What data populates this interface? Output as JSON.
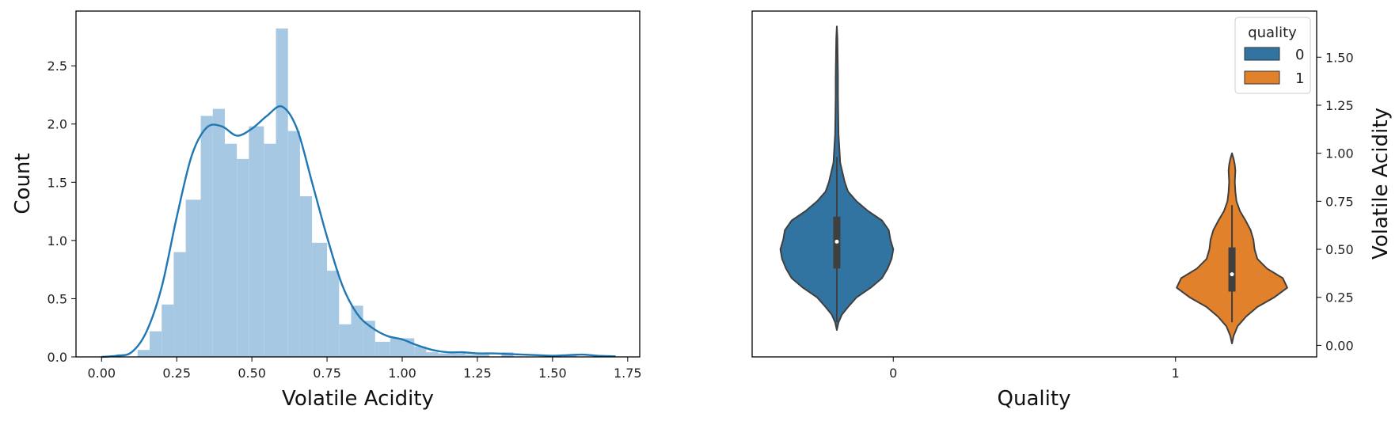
{
  "chart_data": [
    {
      "type": "bar",
      "subtype": "histogram-with-kde",
      "xlabel": "Volatile Acidity",
      "ylabel": "Count",
      "xlim": [
        -0.085,
        1.79
      ],
      "ylim": [
        0,
        2.97
      ],
      "xticks": [
        "0.00",
        "0.25",
        "0.50",
        "0.75",
        "1.00",
        "1.25",
        "1.50",
        "1.75"
      ],
      "yticks": [
        "0.0",
        "0.5",
        "1.0",
        "1.5",
        "2.0",
        "2.5"
      ],
      "grid": false,
      "bar_color": "#a6c8e2",
      "line_color": "#1f77b4",
      "bins": [
        {
          "x0": 0.12,
          "x1": 0.16,
          "h": 0.06
        },
        {
          "x0": 0.16,
          "x1": 0.2,
          "h": 0.22
        },
        {
          "x0": 0.2,
          "x1": 0.24,
          "h": 0.45
        },
        {
          "x0": 0.24,
          "x1": 0.28,
          "h": 0.9
        },
        {
          "x0": 0.28,
          "x1": 0.33,
          "h": 1.35
        },
        {
          "x0": 0.33,
          "x1": 0.37,
          "h": 2.07
        },
        {
          "x0": 0.37,
          "x1": 0.41,
          "h": 2.13
        },
        {
          "x0": 0.41,
          "x1": 0.45,
          "h": 1.83
        },
        {
          "x0": 0.45,
          "x1": 0.49,
          "h": 1.7
        },
        {
          "x0": 0.49,
          "x1": 0.54,
          "h": 1.98
        },
        {
          "x0": 0.54,
          "x1": 0.58,
          "h": 1.83
        },
        {
          "x0": 0.58,
          "x1": 0.62,
          "h": 2.82
        },
        {
          "x0": 0.62,
          "x1": 0.66,
          "h": 1.94
        },
        {
          "x0": 0.66,
          "x1": 0.7,
          "h": 1.38
        },
        {
          "x0": 0.7,
          "x1": 0.75,
          "h": 0.98
        },
        {
          "x0": 0.75,
          "x1": 0.79,
          "h": 0.74
        },
        {
          "x0": 0.79,
          "x1": 0.83,
          "h": 0.28
        },
        {
          "x0": 0.83,
          "x1": 0.87,
          "h": 0.44
        },
        {
          "x0": 0.87,
          "x1": 0.91,
          "h": 0.31
        },
        {
          "x0": 0.91,
          "x1": 0.96,
          "h": 0.13
        },
        {
          "x0": 0.96,
          "x1": 1.0,
          "h": 0.16
        },
        {
          "x0": 1.0,
          "x1": 1.04,
          "h": 0.16
        },
        {
          "x0": 1.04,
          "x1": 1.08,
          "h": 0.09
        },
        {
          "x0": 1.08,
          "x1": 1.12,
          "h": 0.04
        },
        {
          "x0": 1.12,
          "x1": 1.16,
          "h": 0.03
        },
        {
          "x0": 1.16,
          "x1": 1.21,
          "h": 0.03
        },
        {
          "x0": 1.21,
          "x1": 1.25,
          "h": 0.02
        },
        {
          "x0": 1.25,
          "x1": 1.29,
          "h": 0.02
        },
        {
          "x0": 1.33,
          "x1": 1.37,
          "h": 0.04
        },
        {
          "x0": 1.54,
          "x1": 1.58,
          "h": 0.02
        }
      ],
      "kde": {
        "x": [
          0.0,
          0.05,
          0.1,
          0.15,
          0.2,
          0.25,
          0.3,
          0.35,
          0.4,
          0.45,
          0.5,
          0.55,
          0.6,
          0.65,
          0.7,
          0.75,
          0.8,
          0.85,
          0.9,
          0.95,
          1.0,
          1.05,
          1.1,
          1.15,
          1.2,
          1.25,
          1.3,
          1.35,
          1.4,
          1.45,
          1.5,
          1.55,
          1.6,
          1.65,
          1.71
        ],
        "y": [
          0.0,
          0.01,
          0.04,
          0.22,
          0.6,
          1.2,
          1.73,
          1.97,
          1.98,
          1.9,
          1.96,
          2.07,
          2.15,
          1.96,
          1.5,
          1.03,
          0.62,
          0.37,
          0.25,
          0.18,
          0.15,
          0.1,
          0.06,
          0.04,
          0.04,
          0.03,
          0.03,
          0.025,
          0.02,
          0.015,
          0.01,
          0.015,
          0.02,
          0.01,
          0.005
        ]
      }
    },
    {
      "type": "violin",
      "xlabel": "Quality",
      "ylabel": "Volatile Acidity",
      "categories": [
        "0",
        "1"
      ],
      "ylim": [
        -0.06,
        1.74
      ],
      "yticks": [
        "0.00",
        "0.25",
        "0.50",
        "0.75",
        "1.00",
        "1.25",
        "1.50"
      ],
      "grid": false,
      "legend": {
        "title": "quality",
        "position": "top-right",
        "entries": [
          "0",
          "1"
        ]
      },
      "series": [
        {
          "name": "0",
          "color": "#3274a1",
          "category_offset": -0.2,
          "profile_y": [
            0.08,
            0.12,
            0.16,
            0.2,
            0.25,
            0.3,
            0.35,
            0.4,
            0.45,
            0.5,
            0.55,
            0.6,
            0.65,
            0.7,
            0.75,
            0.8,
            0.85,
            0.9,
            0.95,
            1.0,
            1.05,
            1.1,
            1.2,
            1.3,
            1.4,
            1.5,
            1.6,
            1.66
          ],
          "profile_density": [
            0.0,
            0.03,
            0.09,
            0.2,
            0.35,
            0.6,
            0.8,
            0.9,
            0.97,
            1.0,
            0.95,
            0.92,
            0.8,
            0.55,
            0.35,
            0.2,
            0.14,
            0.1,
            0.06,
            0.05,
            0.04,
            0.03,
            0.025,
            0.02,
            0.02,
            0.015,
            0.01,
            0.0
          ],
          "q1": 0.4,
          "q3": 0.67,
          "median": 0.54,
          "whisker_low": 0.12,
          "whisker_high": 0.98
        },
        {
          "name": "1",
          "color": "#e1812c",
          "category_offset": 0.2,
          "profile_y": [
            0.01,
            0.05,
            0.1,
            0.15,
            0.2,
            0.25,
            0.3,
            0.35,
            0.4,
            0.45,
            0.5,
            0.55,
            0.6,
            0.65,
            0.7,
            0.75,
            0.8,
            0.85,
            0.88,
            0.91,
            0.94,
            0.97,
            1.0
          ],
          "profile_density": [
            0.0,
            0.03,
            0.1,
            0.25,
            0.45,
            0.75,
            0.98,
            0.9,
            0.62,
            0.45,
            0.4,
            0.38,
            0.33,
            0.24,
            0.14,
            0.08,
            0.06,
            0.05,
            0.055,
            0.06,
            0.05,
            0.03,
            0.0
          ],
          "q1": 0.28,
          "q3": 0.51,
          "median": 0.37,
          "whisker_low": 0.12,
          "whisker_high": 0.73
        }
      ]
    }
  ]
}
